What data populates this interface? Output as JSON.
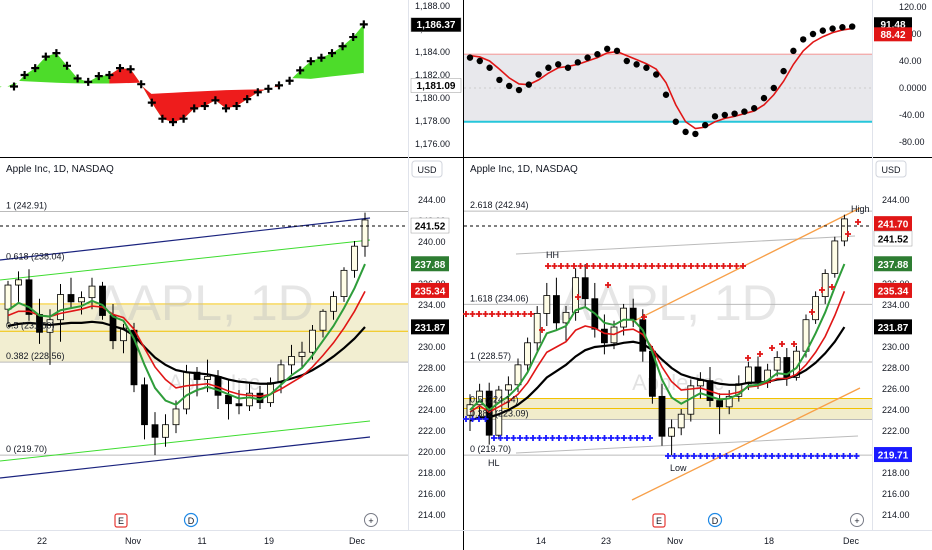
{
  "left": {
    "title": "Apple Inc, 1D, NASDAQ",
    "currency": "USD",
    "watermark": "AAPL, 1D",
    "watermark_sub": "Apple Inc",
    "top_axis": {
      "ticks": [
        "1,188.00",
        "1,186.00",
        "1,184.00",
        "1,182.00",
        "1,180.00",
        "1,178.00",
        "1,176.00"
      ],
      "tags": [
        {
          "text": "1,186.37",
          "bg": "#000000",
          "fg": "#ffffff"
        },
        {
          "text": "1,181.09",
          "bg": "#ffffff",
          "fg": "#000000"
        }
      ]
    },
    "price_axis": {
      "ticks": [
        "244.00",
        "242.00",
        "240.00",
        "238.00",
        "236.00",
        "234.00",
        "232.00",
        "230.00",
        "228.00",
        "226.00",
        "224.00",
        "222.00",
        "220.00",
        "218.00",
        "216.00",
        "214.00"
      ],
      "tags": [
        {
          "text": "241.52",
          "bg": "#ffffff",
          "fg": "#000000"
        },
        {
          "text": "237.88",
          "bg": "#2e7d32",
          "fg": "#ffffff"
        },
        {
          "text": "235.34",
          "bg": "#e01616",
          "fg": "#ffffff"
        },
        {
          "text": "231.87",
          "bg": "#000000",
          "fg": "#ffffff"
        }
      ]
    },
    "fib_labels": [
      "1 (242.91)",
      "0.618 (238.04)",
      "0.5 (231.50)",
      "0.382 (228.56)",
      "0 (219.70)"
    ],
    "time_labels": [
      "22",
      "Nov",
      "11",
      "19",
      "Dec"
    ],
    "event_markers": [
      {
        "text": "E",
        "color": "#e53935"
      },
      {
        "text": "D",
        "color": "#1e88e5"
      },
      {
        "text": "+",
        "color": "#787b86"
      }
    ]
  },
  "right": {
    "title": "Apple Inc, 1D, NASDAQ",
    "currency": "USD",
    "watermark": "AAPL, 1D",
    "watermark_sub": "Apple Inc",
    "top_axis": {
      "ticks": [
        "120.00",
        "80.00",
        "40.00",
        "0.0000",
        "-40.00",
        "-80.00"
      ],
      "tags": [
        {
          "text": "91.48",
          "bg": "#000000",
          "fg": "#ffffff"
        },
        {
          "text": "88.42",
          "bg": "#e01616",
          "fg": "#ffffff"
        }
      ]
    },
    "price_axis": {
      "ticks": [
        "244.00",
        "242.00",
        "240.00",
        "238.00",
        "236.00",
        "234.00",
        "232.00",
        "230.00",
        "228.00",
        "226.00",
        "224.00",
        "222.00",
        "220.00",
        "218.00",
        "216.00",
        "214.00"
      ],
      "tags": [
        {
          "text": "241.70",
          "bg": "#e01616",
          "fg": "#ffffff"
        },
        {
          "text": "241.52",
          "bg": "#ffffff",
          "fg": "#000000"
        },
        {
          "text": "237.88",
          "bg": "#2e7d32",
          "fg": "#ffffff"
        },
        {
          "text": "235.34",
          "bg": "#e01616",
          "fg": "#ffffff"
        },
        {
          "text": "231.87",
          "bg": "#000000",
          "fg": "#ffffff"
        },
        {
          "text": "219.71",
          "bg": "#1a1aff",
          "fg": "#ffffff"
        }
      ]
    },
    "fib_labels": [
      "2.618 (242.94)",
      "1.618 (234.06)",
      "1 (228.57)",
      "0.5 (224.14)",
      "0.382 (223.09)",
      "0 (219.70)"
    ],
    "annotations": [
      "High",
      "HH",
      "Low",
      "HL"
    ],
    "time_labels": [
      "14",
      "23",
      "Nov",
      "18",
      "Dec"
    ],
    "event_markers": [
      {
        "text": "E",
        "color": "#e53935"
      },
      {
        "text": "D",
        "color": "#1e88e5"
      },
      {
        "text": "+",
        "color": "#787b86"
      }
    ]
  },
  "chart_data": [
    {
      "type": "candlestick",
      "title": "Apple Inc, 1D, NASDAQ",
      "ylim": [
        214,
        246
      ],
      "candles": [
        [
          233.6,
          236.3,
          232.2,
          235.9
        ],
        [
          235.9,
          237.2,
          234.3,
          236.4
        ],
        [
          236.4,
          237.4,
          232.5,
          233.1
        ],
        [
          233.1,
          234.6,
          230.3,
          231.4
        ],
        [
          231.4,
          233.6,
          228.3,
          232.6
        ],
        [
          232.6,
          236.0,
          230.5,
          235.0
        ],
        [
          235.0,
          236.6,
          233.7,
          234.3
        ],
        [
          234.3,
          235.3,
          233.1,
          234.7
        ],
        [
          234.7,
          236.6,
          233.6,
          235.8
        ],
        [
          235.8,
          236.2,
          232.6,
          233.0
        ],
        [
          233.0,
          234.1,
          229.8,
          230.6
        ],
        [
          230.6,
          232.2,
          229.4,
          231.8
        ],
        [
          231.6,
          232.3,
          225.7,
          226.4
        ],
        [
          226.4,
          227.1,
          221.2,
          222.6
        ],
        [
          222.6,
          223.8,
          219.7,
          221.4
        ],
        [
          221.4,
          223.6,
          220.5,
          222.6
        ],
        [
          222.6,
          224.9,
          221.8,
          224.1
        ],
        [
          224.1,
          228.3,
          223.6,
          227.6
        ],
        [
          227.6,
          228.1,
          225.3,
          226.9
        ],
        [
          226.9,
          228.8,
          225.7,
          227.2
        ],
        [
          227.2,
          227.8,
          224.1,
          225.4
        ],
        [
          225.4,
          226.9,
          223.1,
          224.6
        ],
        [
          224.6,
          225.9,
          223.6,
          224.4
        ],
        [
          224.4,
          226.5,
          223.9,
          225.6
        ],
        [
          225.6,
          226.3,
          224.1,
          224.7
        ],
        [
          224.7,
          227.1,
          224.3,
          226.6
        ],
        [
          226.6,
          228.8,
          225.6,
          228.3
        ],
        [
          228.3,
          230.2,
          227.4,
          229.1
        ],
        [
          229.1,
          230.5,
          227.9,
          229.5
        ],
        [
          229.5,
          232.1,
          228.8,
          231.6
        ],
        [
          231.6,
          233.6,
          230.9,
          233.4
        ],
        [
          233.4,
          235.3,
          232.6,
          234.8
        ],
        [
          234.8,
          237.6,
          234.3,
          237.3
        ],
        [
          237.3,
          240.1,
          236.6,
          239.6
        ],
        [
          239.6,
          242.8,
          238.6,
          242.1
        ]
      ],
      "ema_green": [
        233.5,
        234.2,
        233.8,
        233.0,
        232.9,
        233.5,
        233.7,
        233.9,
        234.4,
        234.0,
        232.9,
        232.5,
        230.8,
        228.3,
        226.1,
        224.9,
        224.5,
        225.4,
        225.9,
        226.2,
        225.9,
        225.5,
        225.1,
        225.2,
        225.0,
        225.5,
        226.4,
        227.3,
        228.0,
        229.2,
        230.6,
        232.0,
        233.7,
        235.6,
        237.9
      ],
      "ema_red": [
        233.0,
        233.4,
        233.4,
        233.0,
        232.9,
        233.2,
        233.4,
        233.6,
        233.9,
        233.8,
        233.1,
        232.8,
        231.7,
        229.9,
        228.1,
        226.9,
        226.1,
        226.3,
        226.4,
        226.5,
        226.2,
        225.8,
        225.5,
        225.4,
        225.3,
        225.5,
        226.0,
        226.6,
        227.2,
        228.1,
        229.2,
        230.4,
        231.8,
        233.4,
        235.3
      ],
      "ema_black": [
        232.0,
        232.2,
        232.3,
        232.2,
        232.1,
        232.2,
        232.3,
        232.3,
        232.4,
        232.3,
        232.0,
        231.7,
        231.1,
        230.0,
        229.0,
        228.3,
        227.8,
        227.6,
        227.5,
        227.4,
        227.2,
        226.9,
        226.7,
        226.6,
        226.5,
        226.5,
        226.7,
        227.0,
        227.3,
        227.8,
        228.4,
        229.1,
        229.9,
        230.8,
        231.9
      ],
      "fib_levels": [
        242.91,
        238.04,
        231.5,
        228.56,
        219.7
      ]
    },
    {
      "type": "candlestick",
      "title": "Apple Inc, 1D, NASDAQ",
      "ylim": [
        214,
        246
      ],
      "candles": [
        [
          223.5,
          225.5,
          222.0,
          224.5
        ],
        [
          224.5,
          226.5,
          223.3,
          225.8
        ],
        [
          225.8,
          226.6,
          220.7,
          221.6
        ],
        [
          221.6,
          226.3,
          221.2,
          225.9
        ],
        [
          225.9,
          227.2,
          224.2,
          226.4
        ],
        [
          226.4,
          228.9,
          225.7,
          228.3
        ],
        [
          228.3,
          230.9,
          227.6,
          230.4
        ],
        [
          230.4,
          233.9,
          229.6,
          233.2
        ],
        [
          233.2,
          236.1,
          232.0,
          234.9
        ],
        [
          234.9,
          236.6,
          231.6,
          232.3
        ],
        [
          232.3,
          233.9,
          230.6,
          233.3
        ],
        [
          233.3,
          237.5,
          232.5,
          236.6
        ],
        [
          236.6,
          237.9,
          233.8,
          234.6
        ],
        [
          234.6,
          236.1,
          230.9,
          231.7
        ],
        [
          231.7,
          233.1,
          229.3,
          230.4
        ],
        [
          230.4,
          232.5,
          229.8,
          231.9
        ],
        [
          231.9,
          234.1,
          231.1,
          233.7
        ],
        [
          233.7,
          234.6,
          231.9,
          232.6
        ],
        [
          232.6,
          233.6,
          228.6,
          229.6
        ],
        [
          229.6,
          230.1,
          224.6,
          225.3
        ],
        [
          225.3,
          226.5,
          220.6,
          221.5
        ],
        [
          221.5,
          223.1,
          219.7,
          222.3
        ],
        [
          222.3,
          224.1,
          221.6,
          223.6
        ],
        [
          223.6,
          226.9,
          222.9,
          226.3
        ],
        [
          226.3,
          227.6,
          225.1,
          226.8
        ],
        [
          226.8,
          228.1,
          224.3,
          224.9
        ],
        [
          224.9,
          225.6,
          221.7,
          224.3
        ],
        [
          224.3,
          225.9,
          223.6,
          225.3
        ],
        [
          225.3,
          227.3,
          224.8,
          226.5
        ],
        [
          226.5,
          228.6,
          225.9,
          228.1
        ],
        [
          228.1,
          229.1,
          226.0,
          226.6
        ],
        [
          226.6,
          228.4,
          226.1,
          227.8
        ],
        [
          227.8,
          229.6,
          227.2,
          229.0
        ],
        [
          229.0,
          229.9,
          226.3,
          227.1
        ],
        [
          227.1,
          230.1,
          226.8,
          229.6
        ],
        [
          229.6,
          233.1,
          229.0,
          232.6
        ],
        [
          232.6,
          235.3,
          232.2,
          234.8
        ],
        [
          234.8,
          237.4,
          234.1,
          237.0
        ],
        [
          237.0,
          240.5,
          236.6,
          240.1
        ],
        [
          240.1,
          242.6,
          239.6,
          242.2
        ]
      ],
      "ema_green": [
        224.0,
        224.9,
        224.0,
        224.7,
        225.3,
        226.2,
        227.6,
        229.5,
        231.3,
        231.6,
        232.0,
        233.5,
        233.8,
        233.2,
        232.3,
        232.1,
        232.6,
        232.6,
        231.6,
        229.5,
        226.9,
        225.2,
        224.6,
        225.1,
        225.6,
        225.3,
        225.0,
        225.1,
        225.5,
        226.3,
        226.4,
        226.8,
        227.5,
        227.4,
        228.0,
        229.5,
        231.3,
        233.3,
        235.7,
        237.9
      ],
      "ema_red": [
        223.8,
        224.4,
        223.8,
        224.3,
        224.8,
        225.5,
        226.6,
        228.1,
        229.5,
        230.0,
        230.5,
        231.6,
        232.0,
        231.8,
        231.3,
        231.2,
        231.6,
        231.7,
        231.2,
        229.9,
        228.1,
        226.7,
        225.9,
        226.0,
        226.1,
        225.8,
        225.5,
        225.5,
        225.7,
        226.2,
        226.3,
        226.6,
        227.0,
        227.0,
        227.4,
        228.3,
        229.5,
        231.0,
        233.0,
        235.3
      ],
      "ema_black": [
        223.0,
        223.3,
        223.3,
        223.6,
        224.0,
        224.5,
        225.2,
        226.1,
        227.1,
        227.7,
        228.3,
        229.1,
        229.7,
        230.0,
        230.1,
        230.2,
        230.4,
        230.5,
        230.3,
        229.7,
        228.8,
        228.0,
        227.4,
        227.1,
        226.9,
        226.7,
        226.5,
        226.4,
        226.4,
        226.6,
        226.6,
        226.7,
        226.9,
        227.0,
        227.3,
        227.8,
        228.5,
        229.4,
        230.5,
        231.9
      ],
      "fib_levels": [
        242.94,
        234.06,
        228.57,
        224.14,
        223.09,
        219.7
      ]
    }
  ]
}
